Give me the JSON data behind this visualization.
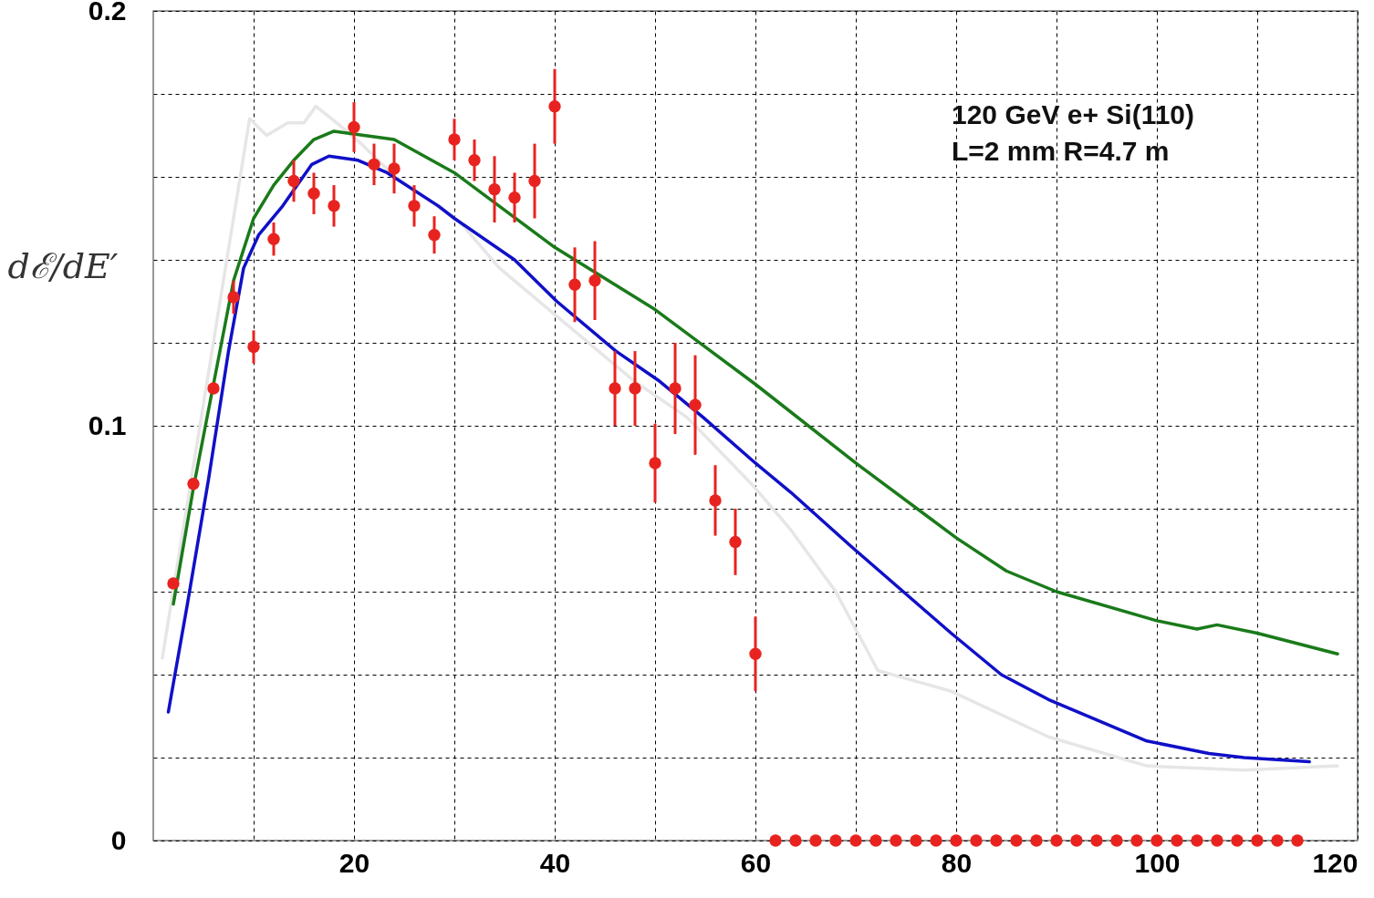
{
  "chart_data": {
    "type": "line",
    "ylabel": "dℰ/dE′",
    "annotations": [
      "120 GeV e+ Si(110)",
      "L=2 mm  R=4.7 m"
    ],
    "xlim": [
      0,
      120
    ],
    "ylim": [
      0,
      0.2
    ],
    "xticks": [
      {
        "value": 10,
        "label": null
      },
      20,
      {
        "value": 30,
        "label": null
      },
      40,
      {
        "value": 50,
        "label": null
      },
      60,
      {
        "value": 70,
        "label": null
      },
      80,
      {
        "value": 90,
        "label": null
      },
      100,
      {
        "value": 110,
        "label": null
      },
      120
    ],
    "yticks": [
      0,
      {
        "value": 0.02,
        "label": null
      },
      {
        "value": 0.04,
        "label": null
      },
      {
        "value": 0.06,
        "label": null
      },
      {
        "value": 0.08,
        "label": null
      },
      0.1,
      {
        "value": 0.12,
        "label": null
      },
      {
        "value": 0.14,
        "label": null
      },
      {
        "value": 0.16,
        "label": null
      },
      {
        "value": 0.18,
        "label": null
      },
      0.2
    ],
    "grid": true,
    "line_style": "solid",
    "series": [
      {
        "color": "#e6e6e6",
        "x": [
          0.9,
          9.6,
          11.3,
          13.4,
          15,
          16.2,
          18.3,
          20.7,
          24.1,
          30.6,
          34.5,
          40.4,
          47.8,
          53.2,
          59.6,
          63.5,
          68,
          72.2,
          79.5,
          89.2,
          99,
          108.7,
          118
        ],
        "values": [
          0.044,
          0.174,
          0.17,
          0.173,
          0.173,
          0.177,
          0.173,
          0.168,
          0.16,
          0.149,
          0.138,
          0.126,
          0.111,
          0.102,
          0.086,
          0.075,
          0.06,
          0.041,
          0.036,
          0.025,
          0.018,
          0.017,
          0.018
        ]
      },
      {
        "color": "#1010c8",
        "x": [
          1.5,
          3.4,
          5.5,
          7.5,
          9,
          10.5,
          12.9,
          15.8,
          17.5,
          20.4,
          23.3,
          28.4,
          30,
          36,
          40.2,
          46.1,
          50.3,
          54.8,
          60,
          63.5,
          69.5,
          79.5,
          84.5,
          89.2,
          99,
          105.2,
          108.7,
          115.2
        ],
        "values": [
          0.031,
          0.057,
          0.087,
          0.118,
          0.138,
          0.146,
          0.153,
          0.163,
          0.165,
          0.164,
          0.161,
          0.153,
          0.15,
          0.14,
          0.13,
          0.118,
          0.111,
          0.102,
          0.091,
          0.084,
          0.071,
          0.05,
          0.04,
          0.034,
          0.024,
          0.021,
          0.02,
          0.019
        ]
      },
      {
        "color": "#1a7a1a",
        "x": [
          2,
          4,
          6,
          8,
          10,
          12,
          14,
          16,
          18,
          20,
          24,
          30,
          40,
          50,
          60,
          70,
          80,
          85,
          90,
          100,
          104,
          106,
          110,
          118
        ],
        "values": [
          0.057,
          0.085,
          0.11,
          0.135,
          0.15,
          0.158,
          0.164,
          0.169,
          0.171,
          null,
          0.169,
          0.161,
          0.143,
          0.128,
          0.11,
          0.091,
          0.073,
          0.065,
          0.06,
          0.053,
          0.051,
          0.052,
          0.05,
          0.045
        ]
      },
      {
        "type": "scatter",
        "color": "#e8231f",
        "marker": "circle",
        "x": [
          2,
          4,
          6,
          8,
          10,
          12,
          14,
          16,
          18,
          20,
          22,
          24,
          26,
          28,
          30,
          32,
          34,
          36,
          38,
          40,
          42,
          44,
          46,
          48,
          50,
          52,
          54,
          56,
          58,
          60,
          62,
          64,
          66,
          68,
          70,
          72,
          74,
          76,
          78,
          80,
          82,
          84,
          86,
          88,
          90,
          92,
          94,
          96,
          98,
          100,
          102,
          104,
          106,
          108,
          110,
          112,
          114
        ],
        "values": [
          0.062,
          0.086,
          0.109,
          0.131,
          0.119,
          0.145,
          0.159,
          0.156,
          0.153,
          0.172,
          0.163,
          0.162,
          0.153,
          0.146,
          0.169,
          0.164,
          0.157,
          0.155,
          0.159,
          0.177,
          0.134,
          0.135,
          0.109,
          0.109,
          0.091,
          0.109,
          0.105,
          0.082,
          0.072,
          0.045,
          0,
          0,
          0,
          0,
          0,
          0,
          0,
          0,
          0,
          0,
          0,
          0,
          0,
          0,
          0,
          0,
          0,
          0,
          0,
          0,
          0,
          0,
          0,
          0,
          0,
          0,
          0
        ],
        "errors": [
          null,
          null,
          null,
          0.004,
          0.004,
          0.004,
          0.005,
          0.005,
          0.005,
          0.006,
          0.005,
          0.006,
          0.005,
          0.0045,
          0.005,
          0.005,
          0.008,
          0.006,
          0.009,
          0.009,
          0.009,
          0.0095,
          0.009,
          0.009,
          0.0095,
          0.011,
          0.012,
          0.0085,
          0.008,
          0.009,
          null,
          null,
          null,
          null,
          null,
          null,
          null,
          null,
          null,
          null,
          null,
          null,
          null,
          null,
          null,
          null,
          null,
          null,
          null,
          null,
          null,
          null,
          null,
          null,
          null,
          null,
          null
        ]
      }
    ]
  }
}
